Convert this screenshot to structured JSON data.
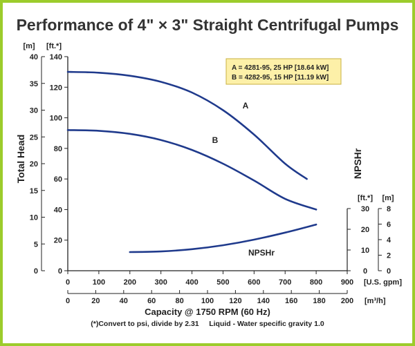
{
  "title": "Performance of 4\" × 3\" Straight Centrifugal Pumps",
  "colors": {
    "border": "#9ccc2c",
    "curve": "#1f3a8c",
    "legend_bg": "#fdf0a8",
    "legend_border": "#c8b040"
  },
  "chart_data": {
    "type": "line",
    "title": "Performance of 4\" × 3\" Straight Centrifugal Pumps",
    "xlabel": "Capacity @ 1750 RPM (60 Hz)",
    "ylabel": "Total Head",
    "x_axis_primary": {
      "unit": "[U.S. gpm]",
      "range": [
        0,
        900
      ],
      "ticks": [
        0,
        100,
        200,
        300,
        400,
        500,
        600,
        700,
        800,
        900
      ]
    },
    "x_axis_secondary": {
      "unit": "[m³/h]",
      "range": [
        0,
        200
      ],
      "ticks": [
        0,
        20,
        40,
        60,
        80,
        100,
        120,
        140,
        160,
        180,
        200
      ]
    },
    "y_axis_left_ft": {
      "unit": "[ft.*]",
      "range": [
        0,
        140
      ],
      "ticks": [
        0,
        20,
        40,
        60,
        80,
        100,
        120,
        140
      ]
    },
    "y_axis_left_m": {
      "unit": "[m]",
      "range": [
        0,
        40
      ],
      "ticks": [
        0,
        5,
        10,
        15,
        20,
        25,
        30,
        35,
        40
      ]
    },
    "npsh_axis_ft": {
      "label": "NPSHr",
      "unit": "[ft.*]",
      "range": [
        0,
        30
      ],
      "ticks": [
        0,
        10,
        20,
        30
      ]
    },
    "npsh_axis_m": {
      "unit": "[m]",
      "range": [
        0,
        8
      ],
      "ticks": [
        0,
        2,
        4,
        6,
        8
      ]
    },
    "grid": false,
    "legend": {
      "position": "top-right",
      "entries": [
        "A = 4281-95, 25 HP [18.64 kW]",
        "B = 4282-95, 15 HP [11.19 kW]"
      ]
    },
    "series": [
      {
        "name": "A",
        "axis": "head_ft",
        "x": [
          0,
          100,
          200,
          300,
          400,
          500,
          600,
          700,
          770
        ],
        "y": [
          130,
          129.5,
          127.5,
          123.5,
          116.5,
          105,
          89,
          70,
          60
        ]
      },
      {
        "name": "B",
        "axis": "head_ft",
        "x": [
          0,
          100,
          200,
          300,
          400,
          500,
          600,
          700,
          800
        ],
        "y": [
          92,
          91.5,
          89.5,
          85.5,
          79,
          70,
          59,
          47,
          40
        ]
      },
      {
        "name": "NPSHr",
        "axis": "npsh_ft",
        "x": [
          200,
          300,
          400,
          500,
          600,
          700,
          800
        ],
        "y": [
          9,
          9.3,
          10.4,
          12.3,
          15,
          18.4,
          22.3
        ]
      }
    ],
    "curve_labels": [
      "A",
      "B",
      "NPSHr"
    ],
    "footnote": "(*)Convert to psi, divide by 2.31     Liquid - Water specific gravity 1.0"
  }
}
